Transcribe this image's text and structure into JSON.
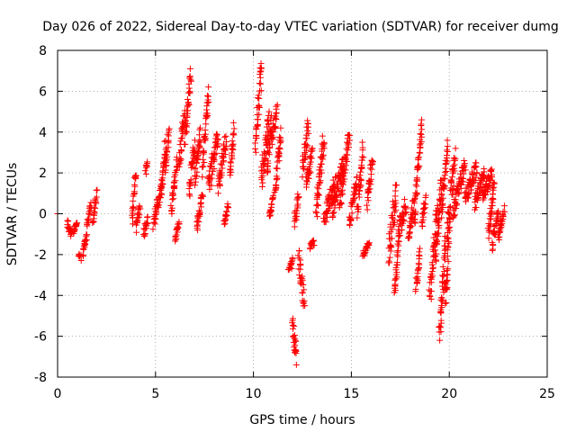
{
  "chart_data": {
    "type": "scatter",
    "title": "Day 026 of 2022, Sidereal Day-to-day VTEC variation (SDTVAR) for receiver dumg",
    "xlabel": "GPS time / hours",
    "ylabel": "SDTVAR / TECUs",
    "xlim": [
      0,
      25
    ],
    "ylim": [
      -8,
      8
    ],
    "xticks": [
      0,
      5,
      10,
      15,
      20,
      25
    ],
    "yticks": [
      -8,
      -6,
      -4,
      -2,
      0,
      2,
      4,
      6,
      8
    ],
    "grid": true,
    "marker": "+",
    "color": "#ff0000",
    "segments": [
      [
        0.5,
        0.7,
        -0.5,
        0.5,
        -1.0
      ],
      [
        0.8,
        1.0,
        -0.9,
        0.2,
        -0.4
      ],
      [
        1.1,
        1.2,
        -2.1,
        0.6,
        -2.0
      ],
      [
        1.3,
        1.5,
        -1.9,
        0.5,
        -1.0
      ],
      [
        1.5,
        1.7,
        -0.5,
        0.6,
        0.4
      ],
      [
        1.8,
        2.0,
        -0.3,
        0.5,
        1.0
      ],
      [
        3.8,
        4.0,
        -0.3,
        0.7,
        2.2
      ],
      [
        4.0,
        4.2,
        -0.8,
        0.6,
        0.3
      ],
      [
        4.4,
        4.6,
        -0.9,
        0.6,
        -0.2
      ],
      [
        4.5,
        4.6,
        2.0,
        0.4,
        2.6
      ],
      [
        4.9,
        5.1,
        -0.6,
        0.5,
        0.6
      ],
      [
        5.1,
        5.3,
        0.1,
        0.7,
        1.5
      ],
      [
        5.3,
        5.5,
        1.0,
        0.9,
        3.5
      ],
      [
        5.5,
        5.7,
        2.2,
        0.8,
        4.2
      ],
      [
        5.8,
        6.1,
        0.2,
        1.0,
        2.6
      ],
      [
        6.0,
        6.2,
        -1.3,
        0.4,
        -0.4
      ],
      [
        6.2,
        6.5,
        2.5,
        1.0,
        5.0
      ],
      [
        6.5,
        6.8,
        3.6,
        1.2,
        6.9
      ],
      [
        6.7,
        7.0,
        1.0,
        1.0,
        3.4
      ],
      [
        7.0,
        7.3,
        1.5,
        1.0,
        4.0
      ],
      [
        7.1,
        7.4,
        -0.7,
        0.6,
        0.8
      ],
      [
        7.4,
        7.7,
        2.0,
        1.2,
        6.2
      ],
      [
        7.7,
        8.2,
        1.2,
        1.2,
        4.0
      ],
      [
        8.2,
        8.6,
        1.2,
        1.0,
        3.6
      ],
      [
        8.5,
        8.7,
        -0.6,
        0.4,
        0.3
      ],
      [
        8.8,
        9.0,
        1.7,
        0.8,
        4.3
      ],
      [
        10.1,
        10.4,
        3.0,
        1.5,
        7.2
      ],
      [
        10.4,
        10.8,
        1.5,
        1.3,
        4.8
      ],
      [
        10.7,
        10.9,
        2.0,
        1.0,
        4.6
      ],
      [
        10.8,
        11.0,
        -0.2,
        0.4,
        0.8
      ],
      [
        10.9,
        11.2,
        3.6,
        1.0,
        5.2
      ],
      [
        11.1,
        11.4,
        0.8,
        1.0,
        4.0
      ],
      [
        11.8,
        12.0,
        -2.8,
        0.4,
        -2.3
      ],
      [
        12.0,
        12.2,
        -5.0,
        1.4,
        -7.2
      ],
      [
        12.1,
        12.3,
        -0.5,
        0.8,
        1.0
      ],
      [
        12.3,
        12.6,
        -2.0,
        1.2,
        -4.4
      ],
      [
        12.5,
        12.8,
        2.0,
        1.2,
        4.4
      ],
      [
        12.7,
        13.0,
        1.5,
        0.9,
        3.0
      ],
      [
        12.9,
        13.1,
        -1.6,
        0.3,
        -1.4
      ],
      [
        13.2,
        13.6,
        0.0,
        1.2,
        3.8
      ],
      [
        13.6,
        14.2,
        -0.2,
        1.0,
        1.6
      ],
      [
        14.0,
        14.6,
        0.0,
        1.0,
        2.5
      ],
      [
        14.4,
        14.9,
        0.5,
        1.0,
        3.9
      ],
      [
        14.9,
        15.3,
        -0.4,
        0.8,
        1.6
      ],
      [
        15.3,
        15.6,
        0.0,
        1.0,
        3.3
      ],
      [
        15.6,
        15.9,
        -2.0,
        0.3,
        -1.4
      ],
      [
        15.8,
        16.1,
        0.4,
        1.0,
        2.8
      ],
      [
        16.9,
        17.3,
        -2.2,
        1.5,
        1.2
      ],
      [
        17.2,
        17.5,
        -4.2,
        1.0,
        -0.3
      ],
      [
        17.5,
        17.8,
        -0.8,
        1.0,
        0.6
      ],
      [
        17.9,
        18.2,
        -1.0,
        0.8,
        0.5
      ],
      [
        18.2,
        18.6,
        -0.4,
        1.3,
        4.4
      ],
      [
        18.3,
        18.5,
        -3.6,
        0.6,
        -1.9
      ],
      [
        18.6,
        18.8,
        -0.5,
        0.6,
        0.7
      ],
      [
        19.0,
        19.4,
        -4.2,
        1.3,
        0.2
      ],
      [
        19.3,
        19.6,
        -2.5,
        1.2,
        1.7
      ],
      [
        19.5,
        19.8,
        -6.0,
        1.6,
        -1.3
      ],
      [
        19.6,
        19.9,
        0.0,
        1.5,
        3.4
      ],
      [
        19.8,
        20.0,
        -4.2,
        1.4,
        -0.8
      ],
      [
        19.9,
        20.3,
        -1.0,
        1.5,
        3.0
      ],
      [
        20.2,
        20.8,
        0.0,
        1.0,
        2.4
      ],
      [
        20.8,
        21.4,
        0.6,
        0.8,
        2.3
      ],
      [
        21.3,
        21.8,
        0.4,
        0.8,
        2.0
      ],
      [
        21.7,
        22.2,
        0.8,
        0.7,
        2.1
      ],
      [
        22.0,
        22.3,
        -1.0,
        0.8,
        1.4
      ],
      [
        22.2,
        22.5,
        -1.6,
        0.7,
        0.2
      ],
      [
        22.5,
        22.8,
        -1.2,
        0.6,
        0.2
      ]
    ]
  }
}
